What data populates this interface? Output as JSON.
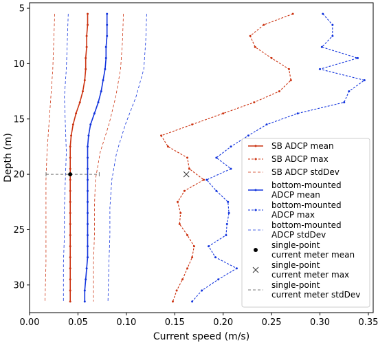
{
  "chart_data": {
    "type": "line",
    "xlabel": "Current speed (m/s)",
    "ylabel": "Depth (m)",
    "xlim": [
      0.0,
      0.355
    ],
    "ylim": [
      4.5,
      32.5
    ],
    "y_inverted": true,
    "grid": false,
    "legend_position": "right",
    "x_ticks": [
      "0.00",
      "0.05",
      "0.10",
      "0.15",
      "0.20",
      "0.25",
      "0.30",
      "0.35"
    ],
    "y_ticks": [
      "5",
      "10",
      "15",
      "20",
      "25",
      "30"
    ],
    "x_tick_values": [
      0.0,
      0.05,
      0.1,
      0.15,
      0.2,
      0.25,
      0.3,
      0.35
    ],
    "y_tick_values": [
      5,
      10,
      15,
      20,
      25,
      30
    ],
    "colors": {
      "sb": "#cc3311",
      "bottom": "#1133dd",
      "point": "#000000",
      "stddev_line": "#777777"
    },
    "series": [
      {
        "name": "SB ADCP mean",
        "role": "sb-mean",
        "depth": [
          5.5,
          6.5,
          7.5,
          8.5,
          9.5,
          10.5,
          11.5,
          12.5,
          13.5,
          14.5,
          15.5,
          16.5,
          17.5,
          18.5,
          19.5,
          20.5,
          21.5,
          22.5,
          23.5,
          24.5,
          25.5,
          26.5,
          27.5,
          28.5,
          29.5,
          30.5,
          31.5
        ],
        "speed": [
          0.06,
          0.06,
          0.059,
          0.059,
          0.058,
          0.058,
          0.057,
          0.055,
          0.052,
          0.048,
          0.045,
          0.043,
          0.042,
          0.042,
          0.042,
          0.042,
          0.042,
          0.042,
          0.042,
          0.042,
          0.042,
          0.042,
          0.042,
          0.042,
          0.042,
          0.042,
          0.042
        ]
      },
      {
        "name": "SB ADCP max",
        "role": "sb-max",
        "depth": [
          5.5,
          6.5,
          7.5,
          8.5,
          9.5,
          10.5,
          11.5,
          12.5,
          13.5,
          14.5,
          15.5,
          16.5,
          17.5,
          18.5,
          19.5,
          20.5,
          21.5,
          22.5,
          23.5,
          24.5,
          25.5,
          26.5,
          27.5,
          28.5,
          29.5,
          30.5,
          31.5
        ],
        "speed": [
          0.272,
          0.242,
          0.228,
          0.233,
          0.25,
          0.268,
          0.27,
          0.258,
          0.232,
          0.2,
          0.168,
          0.136,
          0.143,
          0.163,
          0.165,
          0.18,
          0.16,
          0.153,
          0.156,
          0.155,
          0.163,
          0.17,
          0.168,
          0.163,
          0.158,
          0.152,
          0.148
        ]
      },
      {
        "name": "SB ADCP stdDev",
        "role": "sb-std",
        "depth_lo": [
          5.5,
          8,
          10.5,
          13,
          15.5,
          18,
          20.5,
          23,
          25.5,
          28,
          31.5
        ],
        "speed_lo": [
          0.026,
          0.025,
          0.024,
          0.022,
          0.02,
          0.018,
          0.017,
          0.017,
          0.017,
          0.017,
          0.016
        ],
        "depth_hi": [
          5.5,
          8,
          10.5,
          13,
          15.5,
          18,
          20.5,
          23,
          25.5,
          28,
          31.5
        ],
        "speed_hi": [
          0.097,
          0.096,
          0.094,
          0.089,
          0.082,
          0.073,
          0.068,
          0.067,
          0.067,
          0.066,
          0.066
        ]
      },
      {
        "name": "bottom-mounted ADCP mean",
        "role": "bottom-mean",
        "depth": [
          5.5,
          6.5,
          7.5,
          8.5,
          9.5,
          10.5,
          11.5,
          12.5,
          13.5,
          14.5,
          15.5,
          16.5,
          17.5,
          18.5,
          19.5,
          20.5,
          21.5,
          22.5,
          23.5,
          24.5,
          25.5,
          26.5,
          27.5,
          28.5,
          29.5,
          30.5,
          31.5
        ],
        "speed": [
          0.08,
          0.08,
          0.08,
          0.079,
          0.079,
          0.078,
          0.076,
          0.074,
          0.071,
          0.067,
          0.063,
          0.061,
          0.06,
          0.06,
          0.06,
          0.06,
          0.06,
          0.06,
          0.06,
          0.06,
          0.06,
          0.06,
          0.06,
          0.059,
          0.058,
          0.057,
          0.057
        ]
      },
      {
        "name": "bottom-mounted ADCP max",
        "role": "bottom-max",
        "depth": [
          5.5,
          6.5,
          7.5,
          8.5,
          9.5,
          10.5,
          11.5,
          12.5,
          13.5,
          14.5,
          15.5,
          16.5,
          17.5,
          18.5,
          19.5,
          20.5,
          21.5,
          22.5,
          23.5,
          24.5,
          25.5,
          26.5,
          27.5,
          28.5,
          29.5,
          30.5,
          31.5
        ],
        "speed": [
          0.303,
          0.313,
          0.313,
          0.302,
          0.339,
          0.3,
          0.346,
          0.33,
          0.325,
          0.277,
          0.245,
          0.226,
          0.208,
          0.193,
          0.208,
          0.183,
          0.193,
          0.205,
          0.206,
          0.204,
          0.203,
          0.185,
          0.192,
          0.214,
          0.195,
          0.178,
          0.168
        ]
      },
      {
        "name": "bottom-mounted ADCP stdDev",
        "role": "bottom-std",
        "depth_lo": [
          5.5,
          8,
          10.5,
          13,
          15.5,
          18,
          20.5,
          23,
          25.5,
          28,
          31.5
        ],
        "speed_lo": [
          0.04,
          0.039,
          0.038,
          0.036,
          0.037,
          0.038,
          0.037,
          0.036,
          0.036,
          0.035,
          0.035
        ],
        "depth_hi": [
          5.5,
          8,
          10.5,
          13,
          15.5,
          18,
          20.5,
          23,
          25.5,
          28,
          31.5
        ],
        "speed_hi": [
          0.121,
          0.12,
          0.118,
          0.11,
          0.099,
          0.09,
          0.085,
          0.083,
          0.083,
          0.082,
          0.081
        ]
      },
      {
        "name": "single-point current meter mean",
        "role": "point-mean",
        "depth": [
          20
        ],
        "speed": [
          0.042
        ]
      },
      {
        "name": "single-point current meter max",
        "role": "point-max",
        "depth": [
          20
        ],
        "speed": [
          0.162
        ]
      },
      {
        "name": "single-point current meter stdDev",
        "role": "point-std",
        "depth": [
          20
        ],
        "speed_lo": [
          0.017
        ],
        "speed_hi": [
          0.072
        ]
      }
    ],
    "legend": [
      {
        "lines": [
          "SB ADCP mean"
        ],
        "style": "sb-mean"
      },
      {
        "lines": [
          "SB ADCP max"
        ],
        "style": "sb-max"
      },
      {
        "lines": [
          "SB ADCP stdDev"
        ],
        "style": "sb-std"
      },
      {
        "lines": [
          "bottom-mounted",
          "ADCP mean"
        ],
        "style": "bottom-mean"
      },
      {
        "lines": [
          "bottom-mounted",
          "ADCP max"
        ],
        "style": "bottom-max"
      },
      {
        "lines": [
          "bottom-mounted",
          "ADCP stdDev"
        ],
        "style": "bottom-std"
      },
      {
        "lines": [
          "single-point",
          "current meter mean"
        ],
        "style": "point-mean"
      },
      {
        "lines": [
          "single-point",
          "current meter max"
        ],
        "style": "point-max"
      },
      {
        "lines": [
          "single-point",
          "current meter stdDev"
        ],
        "style": "point-std"
      }
    ]
  }
}
